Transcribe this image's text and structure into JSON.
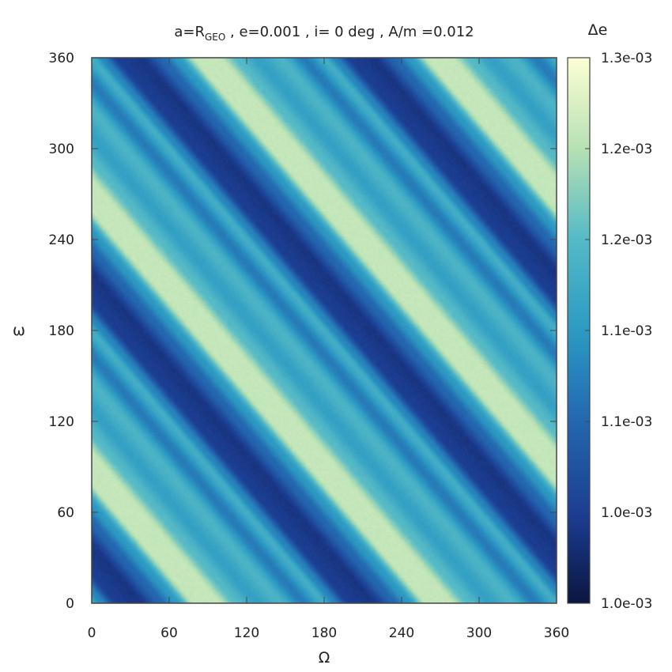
{
  "chart_data": {
    "type": "heatmap",
    "title_parts": {
      "prefix": "a=R",
      "subscript": "GEO",
      "suffix": " , e=0.001 , i= 0 deg , A/m =0.012"
    },
    "xlabel": "Ω",
    "ylabel": "ω",
    "xlim": [
      0,
      360
    ],
    "ylim": [
      0,
      360
    ],
    "x_ticks": [
      "0",
      "60",
      "120",
      "180",
      "240",
      "300",
      "360"
    ],
    "y_ticks": [
      "0",
      "60",
      "120",
      "180",
      "240",
      "300",
      "360"
    ],
    "colorbar": {
      "label": "Δe",
      "range": [
        0.001,
        0.0013
      ],
      "tick_labels": [
        "1.0e-03",
        "1.0e-03",
        "1.1e-03",
        "1.1e-03",
        "1.2e-03",
        "1.2e-03",
        "1.3e-03"
      ],
      "colors": [
        "#0b1640",
        "#1c3e93",
        "#2367b0",
        "#2c9ac3",
        "#55bac6",
        "#b6e1b4",
        "#fdfed4"
      ]
    },
    "field": {
      "description_variable": "Δe as function of (Ω, ω)",
      "phase_variable": "Ω + ω",
      "period_deg": 180,
      "bands": [
        {
          "phase": 0,
          "level": 0.00118
        },
        {
          "phase": 8,
          "level": 0.00113
        },
        {
          "phase": 20,
          "level": 0.00105
        },
        {
          "phase": 38,
          "level": 0.00104
        },
        {
          "phase": 54,
          "level": 0.0011
        },
        {
          "phase": 66,
          "level": 0.00115
        },
        {
          "phase": 80,
          "level": 0.00126
        },
        {
          "phase": 98,
          "level": 0.00126
        },
        {
          "phase": 112,
          "level": 0.0012
        },
        {
          "phase": 128,
          "level": 0.00116
        },
        {
          "phase": 146,
          "level": 0.00119
        },
        {
          "phase": 164,
          "level": 0.00112
        },
        {
          "phase": 180,
          "level": 0.00118
        }
      ]
    }
  }
}
